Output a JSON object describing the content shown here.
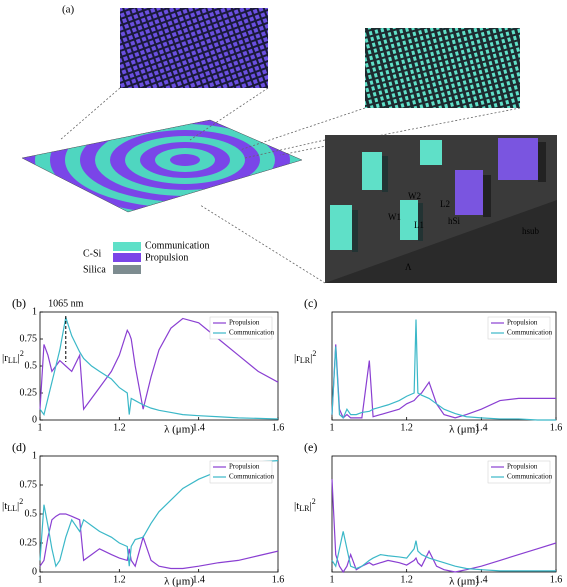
{
  "figure_a": {
    "label": "(a)",
    "materials": [
      "C-Si",
      "Silica"
    ],
    "legend": [
      "Communication",
      "Propulsion"
    ],
    "inset_labels": [
      "W1",
      "W2",
      "L1",
      "L2",
      "hSi",
      "hsub",
      "Λ"
    ]
  },
  "chart_data": [
    {
      "type": "line",
      "panel_label": "(b)",
      "ylabel": [
        "|r",
        "LL",
        "|",
        "2"
      ],
      "xlabel": "λ (μm)",
      "annotation": {
        "text": "1065 nm",
        "x": 1.065
      },
      "x": [
        1.0,
        1.01,
        1.02,
        1.03,
        1.04,
        1.05,
        1.065,
        1.08,
        1.1,
        1.11,
        1.13,
        1.15,
        1.18,
        1.2,
        1.22,
        1.225,
        1.23,
        1.24,
        1.26,
        1.28,
        1.3,
        1.33,
        1.36,
        1.4,
        1.45,
        1.5,
        1.55,
        1.6
      ],
      "xlim": [
        1,
        1.6
      ],
      "xticks": [
        1,
        1.2,
        1.4,
        1.6
      ],
      "ylim": [
        0,
        1
      ],
      "yticks": [
        0,
        0.25,
        0.5,
        0.75,
        1
      ],
      "legend": "upper right",
      "series": [
        {
          "name": "Propulsion",
          "color": "#8a3fd2",
          "values": [
            0.1,
            0.7,
            0.6,
            0.45,
            0.5,
            0.55,
            0.5,
            0.45,
            0.6,
            0.1,
            0.2,
            0.3,
            0.45,
            0.6,
            0.83,
            0.8,
            0.75,
            0.5,
            0.1,
            0.4,
            0.65,
            0.85,
            0.94,
            0.9,
            0.75,
            0.6,
            0.45,
            0.35
          ]
        },
        {
          "name": "Communication",
          "color": "#3bb8c8",
          "values": [
            0.1,
            0.05,
            0.2,
            0.35,
            0.5,
            0.65,
            0.95,
            0.78,
            0.63,
            0.57,
            0.5,
            0.45,
            0.38,
            0.3,
            0.25,
            0.05,
            0.2,
            0.18,
            0.14,
            0.11,
            0.09,
            0.07,
            0.05,
            0.04,
            0.03,
            0.02,
            0.015,
            0.01
          ]
        }
      ]
    },
    {
      "type": "line",
      "panel_label": "(c)",
      "ylabel": [
        "|r",
        "LR",
        "|",
        "2"
      ],
      "xlabel": "λ (μm)",
      "x": [
        1.0,
        1.01,
        1.02,
        1.03,
        1.04,
        1.05,
        1.065,
        1.08,
        1.1,
        1.11,
        1.13,
        1.15,
        1.18,
        1.2,
        1.22,
        1.225,
        1.23,
        1.24,
        1.26,
        1.28,
        1.3,
        1.33,
        1.36,
        1.4,
        1.45,
        1.5,
        1.55,
        1.6
      ],
      "xlim": [
        1,
        1.6
      ],
      "xticks": [
        1,
        1.2,
        1.4,
        1.6
      ],
      "ylim": [
        0,
        1
      ],
      "legend": "upper right",
      "series": [
        {
          "name": "Propulsion",
          "color": "#8a3fd2",
          "values": [
            0.05,
            0.7,
            0.1,
            0.02,
            0.05,
            0.02,
            0.02,
            0.02,
            0.55,
            0.03,
            0.05,
            0.07,
            0.1,
            0.15,
            0.18,
            0.2,
            0.22,
            0.25,
            0.35,
            0.15,
            0.05,
            0.02,
            0.05,
            0.1,
            0.18,
            0.2,
            0.2,
            0.2
          ]
        },
        {
          "name": "Communication",
          "color": "#3bb8c8",
          "values": [
            0.05,
            0.68,
            0.05,
            0.02,
            0.1,
            0.05,
            0.05,
            0.07,
            0.08,
            0.1,
            0.12,
            0.14,
            0.18,
            0.22,
            0.25,
            0.93,
            0.25,
            0.23,
            0.2,
            0.15,
            0.1,
            0.06,
            0.03,
            0.02,
            0.01,
            0.01,
            0,
            0
          ]
        }
      ]
    },
    {
      "type": "line",
      "panel_label": "(d)",
      "ylabel": [
        "|t",
        "LL",
        "|",
        "2"
      ],
      "xlabel": "λ (μm)",
      "x": [
        1.0,
        1.01,
        1.02,
        1.03,
        1.04,
        1.05,
        1.065,
        1.08,
        1.1,
        1.11,
        1.13,
        1.15,
        1.18,
        1.2,
        1.22,
        1.225,
        1.23,
        1.24,
        1.26,
        1.28,
        1.3,
        1.33,
        1.36,
        1.4,
        1.45,
        1.5,
        1.55,
        1.6
      ],
      "xlim": [
        1,
        1.6
      ],
      "xticks": [
        1,
        1.2,
        1.4,
        1.6
      ],
      "ylim": [
        0,
        1
      ],
      "yticks": [
        0,
        0.25,
        0.5,
        0.75,
        1
      ],
      "legend": "upper right",
      "series": [
        {
          "name": "Propulsion",
          "color": "#8a3fd2",
          "values": [
            0.05,
            0.1,
            0.3,
            0.45,
            0.48,
            0.5,
            0.5,
            0.48,
            0.45,
            0.1,
            0.15,
            0.2,
            0.15,
            0.12,
            0.1,
            0.2,
            0.1,
            0.05,
            0.3,
            0.1,
            0.05,
            0.03,
            0.03,
            0.05,
            0.08,
            0.1,
            0.14,
            0.18
          ]
        },
        {
          "name": "Communication",
          "color": "#3bb8c8",
          "values": [
            0.1,
            0.58,
            0.4,
            0.2,
            0.05,
            0.1,
            0.3,
            0.45,
            0.35,
            0.45,
            0.4,
            0.35,
            0.3,
            0.25,
            0.22,
            0.05,
            0.22,
            0.28,
            0.3,
            0.42,
            0.52,
            0.62,
            0.72,
            0.8,
            0.87,
            0.92,
            0.95,
            0.96
          ]
        }
      ]
    },
    {
      "type": "line",
      "panel_label": "(e)",
      "ylabel": [
        "|t",
        "LR",
        "|",
        "2"
      ],
      "xlabel": "λ (μm)",
      "x": [
        1.0,
        1.01,
        1.02,
        1.03,
        1.04,
        1.05,
        1.065,
        1.08,
        1.1,
        1.11,
        1.13,
        1.15,
        1.18,
        1.2,
        1.22,
        1.225,
        1.23,
        1.24,
        1.26,
        1.28,
        1.3,
        1.33,
        1.36,
        1.4,
        1.45,
        1.5,
        1.55,
        1.6
      ],
      "xlim": [
        1,
        1.6
      ],
      "xticks": [
        1,
        1.2,
        1.4,
        1.6
      ],
      "ylim": [
        0,
        1
      ],
      "legend": "upper right",
      "series": [
        {
          "name": "Propulsion",
          "color": "#8a3fd2",
          "values": [
            0.8,
            0.15,
            0.05,
            0,
            0.05,
            0.15,
            0.02,
            0.05,
            0.08,
            0.06,
            0.08,
            0.1,
            0.08,
            0.06,
            0.1,
            0.12,
            0.08,
            0.05,
            0.18,
            0.05,
            0.02,
            0,
            0.02,
            0.05,
            0.1,
            0.15,
            0.2,
            0.25
          ]
        },
        {
          "name": "Communication",
          "color": "#3bb8c8",
          "values": [
            0.1,
            0.05,
            0.2,
            0.35,
            0.2,
            0.05,
            0.03,
            0.05,
            0.1,
            0.12,
            0.15,
            0.14,
            0.13,
            0.12,
            0.2,
            0.27,
            0.18,
            0.15,
            0.12,
            0.1,
            0.08,
            0.05,
            0.03,
            0.02,
            0.01,
            0.01,
            0.01,
            0.01
          ]
        }
      ]
    }
  ]
}
